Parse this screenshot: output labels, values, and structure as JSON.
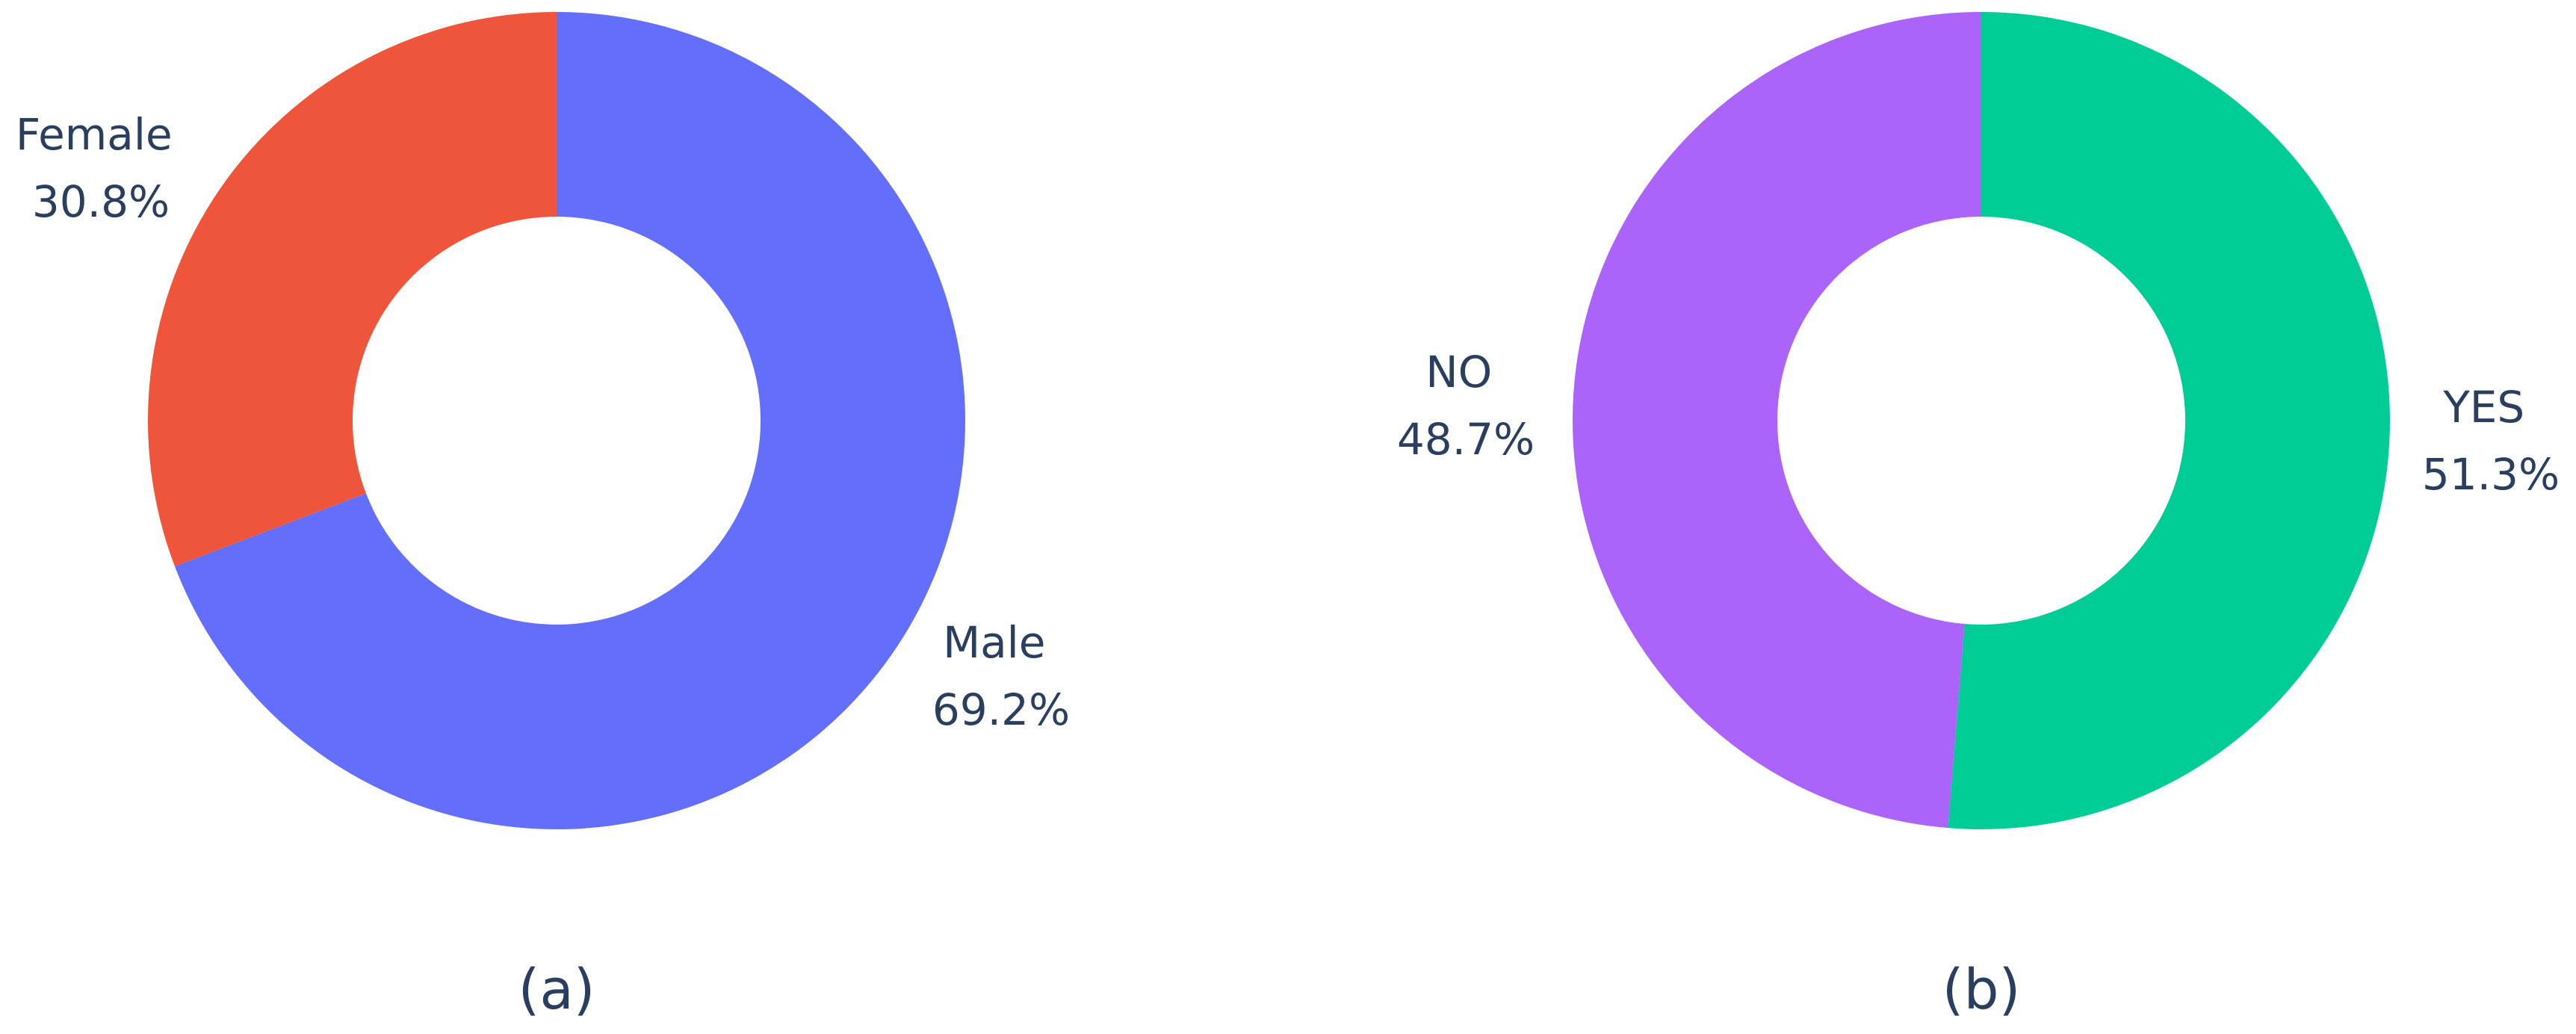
{
  "chart_data": [
    {
      "type": "pie",
      "hole": true,
      "caption": "(a)",
      "slices": [
        {
          "label": "Male",
          "value": 69.2,
          "value_text": "69.2%",
          "color": "#636efa"
        },
        {
          "label": "Female",
          "value": 30.8,
          "value_text": "30.8%",
          "color": "#ef553b"
        }
      ]
    },
    {
      "type": "pie",
      "hole": true,
      "caption": "(b)",
      "slices": [
        {
          "label": "YES",
          "value": 51.3,
          "value_text": "51.3%",
          "color": "#00cc96"
        },
        {
          "label": "NO",
          "value": 48.7,
          "value_text": "48.7%",
          "color": "#ab63fa"
        }
      ]
    }
  ]
}
